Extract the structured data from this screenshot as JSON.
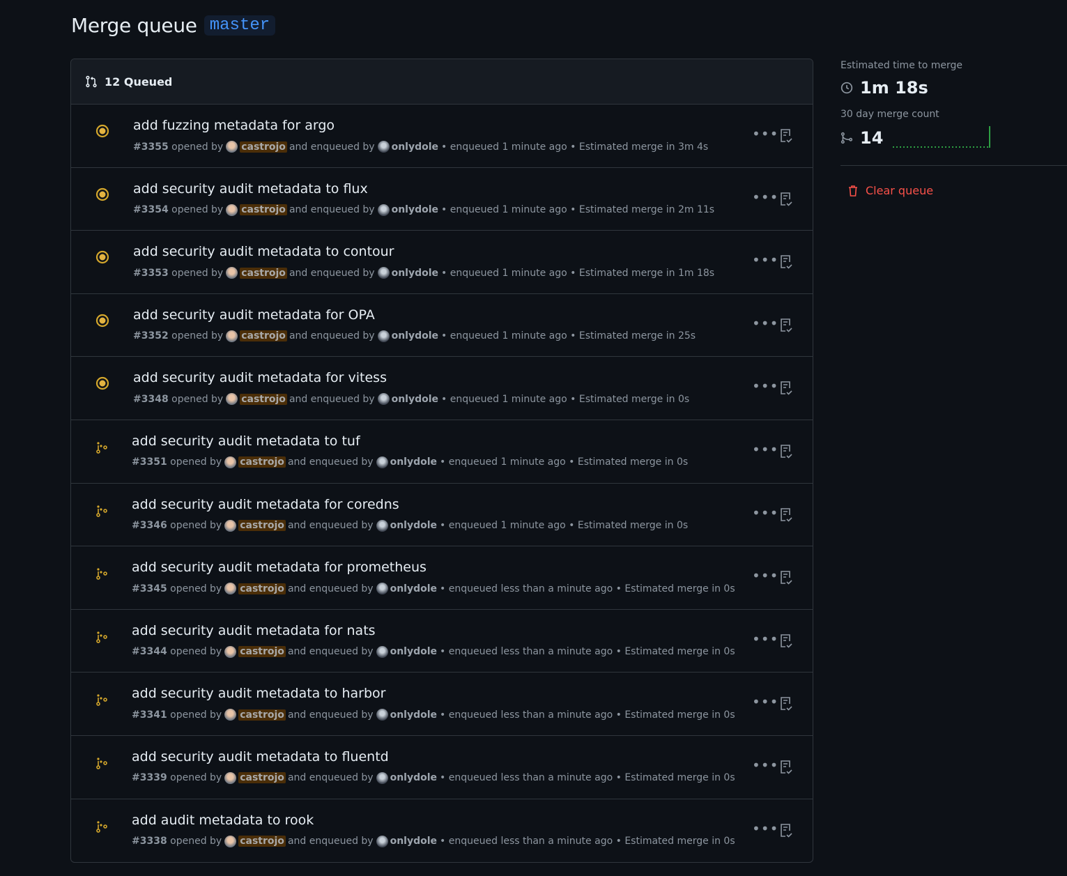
{
  "header": {
    "title": "Merge queue",
    "branch": "master"
  },
  "queue": {
    "count_label": "12 Queued",
    "rows": [
      {
        "title": "add fuzzing metadata for argo",
        "number": "#3355",
        "author": "castrojo",
        "enqueuer": "onlydole",
        "enqueued": "enqueued 1 minute ago",
        "estimate": "Estimated merge in 3m 4s",
        "status": "running"
      },
      {
        "title": "add security audit metadata to flux",
        "number": "#3354",
        "author": "castrojo",
        "enqueuer": "onlydole",
        "enqueued": "enqueued 1 minute ago",
        "estimate": "Estimated merge in 2m 11s",
        "status": "running"
      },
      {
        "title": "add security audit metadata to contour",
        "number": "#3353",
        "author": "castrojo",
        "enqueuer": "onlydole",
        "enqueued": "enqueued 1 minute ago",
        "estimate": "Estimated merge in 1m 18s",
        "status": "running"
      },
      {
        "title": "add security audit metadata for OPA",
        "number": "#3352",
        "author": "castrojo",
        "enqueuer": "onlydole",
        "enqueued": "enqueued 1 minute ago",
        "estimate": "Estimated merge in 25s",
        "status": "running"
      },
      {
        "title": "add security audit metadata for vitess",
        "number": "#3348",
        "author": "castrojo",
        "enqueuer": "onlydole",
        "enqueued": "enqueued 1 minute ago",
        "estimate": "Estimated merge in 0s",
        "status": "running"
      },
      {
        "title": "add security audit metadata to tuf",
        "number": "#3351",
        "author": "castrojo",
        "enqueuer": "onlydole",
        "enqueued": "enqueued 1 minute ago",
        "estimate": "Estimated merge in 0s",
        "status": "waiting"
      },
      {
        "title": "add security audit metadata for coredns",
        "number": "#3346",
        "author": "castrojo",
        "enqueuer": "onlydole",
        "enqueued": "enqueued 1 minute ago",
        "estimate": "Estimated merge in 0s",
        "status": "waiting"
      },
      {
        "title": "add security audit metadata for prometheus",
        "number": "#3345",
        "author": "castrojo",
        "enqueuer": "onlydole",
        "enqueued": "enqueued less than a minute ago",
        "estimate": "Estimated merge in 0s",
        "status": "waiting"
      },
      {
        "title": "add security audit metadata for nats",
        "number": "#3344",
        "author": "castrojo",
        "enqueuer": "onlydole",
        "enqueued": "enqueued less than a minute ago",
        "estimate": "Estimated merge in 0s",
        "status": "waiting"
      },
      {
        "title": "add security audit metadata to harbor",
        "number": "#3341",
        "author": "castrojo",
        "enqueuer": "onlydole",
        "enqueued": "enqueued less than a minute ago",
        "estimate": "Estimated merge in 0s",
        "status": "waiting"
      },
      {
        "title": "add security audit metadata to fluentd",
        "number": "#3339",
        "author": "castrojo",
        "enqueuer": "onlydole",
        "enqueued": "enqueued less than a minute ago",
        "estimate": "Estimated merge in 0s",
        "status": "waiting"
      },
      {
        "title": "add audit metadata to rook",
        "number": "#3338",
        "author": "castrojo",
        "enqueuer": "onlydole",
        "enqueued": "enqueued less than a minute ago",
        "estimate": "Estimated merge in 0s",
        "status": "waiting"
      }
    ],
    "text": {
      "opened_by": "opened by",
      "enqueued_by": "and enqueued by",
      "sep": "•"
    }
  },
  "sidebar": {
    "eta_label": "Estimated time to merge",
    "eta_value": "1m 18s",
    "count_label": "30 day merge count",
    "count_value": "14",
    "clear_label": "Clear queue"
  },
  "colors": {
    "accent": "#4493f8",
    "running": "#d4a72c",
    "danger": "#f85149",
    "sparkline": "#2ea043"
  }
}
